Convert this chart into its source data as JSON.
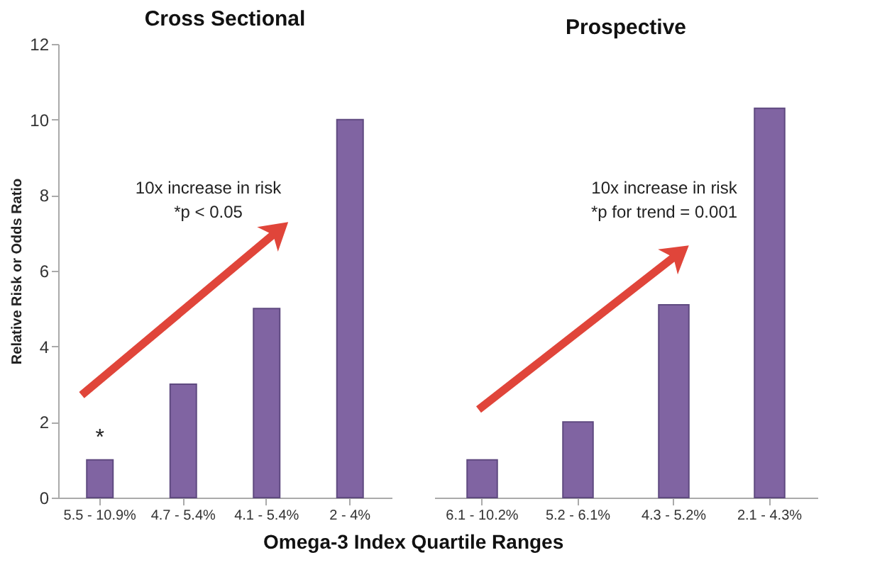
{
  "chart_data": [
    {
      "type": "bar",
      "title": "Cross Sectional",
      "ylabel": "Relative Risk or Odds Ratio",
      "xlabel": "Omega-3 Index Quartile Ranges",
      "categories": [
        "5.5 - 10.9%",
        "4.7 - 5.4%",
        "4.1 - 5.4%",
        "2 - 4%"
      ],
      "values": [
        1,
        3,
        5,
        10
      ],
      "color": "#8064a2",
      "ylim": [
        0,
        12
      ],
      "yticks": [
        0,
        2,
        4,
        6,
        8,
        10,
        12
      ],
      "grid": false,
      "annotations": [
        "10x increase in risk",
        "*p < 0.05",
        {
          "text": "*",
          "x": "5.5 - 10.9%",
          "y": 1
        }
      ]
    },
    {
      "type": "bar",
      "title": "Prospective",
      "categories": [
        "6.1 - 10.2%",
        "5.2 - 6.1%",
        "4.3 - 5.2%",
        "2.1 - 4.3%"
      ],
      "values": [
        1,
        2,
        5.1,
        10.3
      ],
      "color": "#8064a2",
      "ylim": [
        0,
        12
      ],
      "yticks": [
        0,
        2,
        4,
        6,
        8,
        10,
        12
      ],
      "grid": false,
      "tick_labels": "x",
      "annotations": [
        "10x increase in risk",
        "*p for trend = 0.001"
      ]
    }
  ]
}
